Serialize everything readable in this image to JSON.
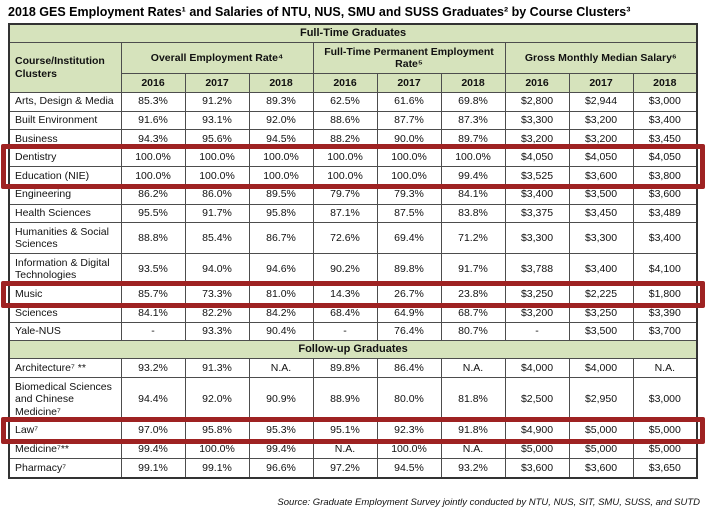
{
  "title": "2018 GES Employment Rates¹ and Salaries of NTU, NUS, SMU and SUSS Graduates² by Course Clusters³",
  "footer": "Source: Graduate Employment Survey jointly conducted by NTU, NUS, SIT, SMU, SUSS, and SUTD",
  "colors": {
    "header_green": "#d6e3bc",
    "highlight_red": "#9e2222",
    "border": "#4d4d4d"
  },
  "table": {
    "section_fulltime": "Full-Time Graduates",
    "section_followup": "Follow-up Graduates",
    "col_cluster": "Course/Institution Clusters",
    "group_headers": [
      "Overall Employment Rate⁴",
      "Full-Time Permanent Employment Rate⁵",
      "Gross Monthly Median Salary⁶"
    ],
    "years": [
      "2016",
      "2017",
      "2018"
    ],
    "rows_fulltime": [
      {
        "label": "Arts, Design & Media",
        "values": [
          "85.3%",
          "91.2%",
          "89.3%",
          "62.5%",
          "61.6%",
          "69.8%",
          "$2,800",
          "$2,944",
          "$3,000"
        ],
        "hl": 0
      },
      {
        "label": "Built Environment",
        "values": [
          "91.6%",
          "93.1%",
          "92.0%",
          "88.6%",
          "87.7%",
          "87.3%",
          "$3,300",
          "$3,200",
          "$3,400"
        ],
        "hl": 0
      },
      {
        "label": "Business",
        "values": [
          "94.3%",
          "95.6%",
          "94.5%",
          "88.2%",
          "90.0%",
          "89.7%",
          "$3,200",
          "$3,200",
          "$3,450"
        ],
        "hl": 0
      },
      {
        "label": "Dentistry",
        "values": [
          "100.0%",
          "100.0%",
          "100.0%",
          "100.0%",
          "100.0%",
          "100.0%",
          "$4,050",
          "$4,050",
          "$4,050"
        ],
        "hl": 1
      },
      {
        "label": "Education (NIE)",
        "values": [
          "100.0%",
          "100.0%",
          "100.0%",
          "100.0%",
          "100.0%",
          "99.4%",
          "$3,525",
          "$3,600",
          "$3,800"
        ],
        "hl": 1
      },
      {
        "label": "Engineering",
        "values": [
          "86.2%",
          "86.0%",
          "89.5%",
          "79.7%",
          "79.3%",
          "84.1%",
          "$3,400",
          "$3,500",
          "$3,600"
        ],
        "hl": 0
      },
      {
        "label": "Health Sciences",
        "values": [
          "95.5%",
          "91.7%",
          "95.8%",
          "87.1%",
          "87.5%",
          "83.8%",
          "$3,375",
          "$3,450",
          "$3,489"
        ],
        "hl": 0
      },
      {
        "label": "Humanities & Social Sciences",
        "values": [
          "88.8%",
          "85.4%",
          "86.7%",
          "72.6%",
          "69.4%",
          "71.2%",
          "$3,300",
          "$3,300",
          "$3,400"
        ],
        "hl": 0
      },
      {
        "label": "Information & Digital Technologies",
        "values": [
          "93.5%",
          "94.0%",
          "94.6%",
          "90.2%",
          "89.8%",
          "91.7%",
          "$3,788",
          "$3,400",
          "$4,100"
        ],
        "hl": 0
      },
      {
        "label": "Music",
        "values": [
          "85.7%",
          "73.3%",
          "81.0%",
          "14.3%",
          "26.7%",
          "23.8%",
          "$3,250",
          "$2,225",
          "$1,800"
        ],
        "hl": 2
      },
      {
        "label": "Sciences",
        "values": [
          "84.1%",
          "82.2%",
          "84.2%",
          "68.4%",
          "64.9%",
          "68.7%",
          "$3,200",
          "$3,250",
          "$3,390"
        ],
        "hl": 0
      },
      {
        "label": "Yale-NUS",
        "values": [
          "-",
          "93.3%",
          "90.4%",
          "-",
          "76.4%",
          "80.7%",
          "-",
          "$3,500",
          "$3,700"
        ],
        "hl": 0
      }
    ],
    "rows_followup": [
      {
        "label": "Architecture⁷ **",
        "values": [
          "93.2%",
          "91.3%",
          "N.A.",
          "89.8%",
          "86.4%",
          "N.A.",
          "$4,000",
          "$4,000",
          "N.A."
        ],
        "hl": 0
      },
      {
        "label": "Biomedical Sciences and Chinese Medicine⁷",
        "values": [
          "94.4%",
          "92.0%",
          "90.9%",
          "88.9%",
          "80.0%",
          "81.8%",
          "$2,500",
          "$2,950",
          "$3,000"
        ],
        "hl": 0
      },
      {
        "label": "Law⁷",
        "values": [
          "97.0%",
          "95.8%",
          "95.3%",
          "95.1%",
          "92.3%",
          "91.8%",
          "$4,900",
          "$5,000",
          "$5,000"
        ],
        "hl": 3
      },
      {
        "label": "Medicine⁷**",
        "values": [
          "99.4%",
          "100.0%",
          "99.4%",
          "N.A.",
          "100.0%",
          "N.A.",
          "$5,000",
          "$5,000",
          "$5,000"
        ],
        "hl": 0
      },
      {
        "label": "Pharmacy⁷",
        "values": [
          "99.1%",
          "99.1%",
          "96.6%",
          "97.2%",
          "94.5%",
          "93.2%",
          "$3,600",
          "$3,600",
          "$3,650"
        ],
        "hl": 0
      }
    ]
  }
}
